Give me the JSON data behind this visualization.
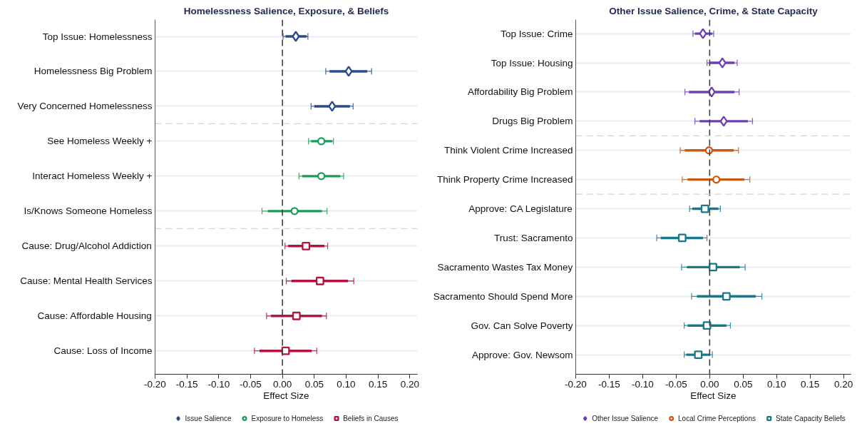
{
  "chart_data": [
    {
      "type": "scatter",
      "orientation": "horizontal",
      "title": "Homelessness Salience, Exposure, & Beliefs",
      "xlabel": "Effect Size",
      "categories": [
        "Top Issue: Homelessness",
        "Homelessness Big Problem",
        "Very Concerned Homelessness",
        "See Homeless Weekly +",
        "Interact Homeless Weekly +",
        "Is/Knows Someone Homeless",
        "Cause: Drug/Alcohol Addiction",
        "Cause: Mental Health Services",
        "Cause: Affordable Housing",
        "Cause: Loss of Income"
      ],
      "series": [
        {
          "name": "Issue Salience",
          "color": "#2a4b88",
          "marker": "diamond",
          "values": [
            0.021,
            0.104,
            0.078,
            null,
            null,
            null,
            null,
            null,
            null,
            null
          ],
          "errors": [
            [
              0.001,
              0.04
            ],
            [
              0.068,
              0.14
            ],
            [
              0.045,
              0.111
            ],
            null,
            null,
            null,
            null,
            null,
            null,
            null
          ]
        },
        {
          "type": "bar",
          "color": "#2a4b88",
          "base": [
            0.005,
            0.074,
            0.05,
            null,
            null,
            null,
            null,
            null,
            null,
            null
          ],
          "values": [
            0.033,
            0.059,
            0.056,
            null,
            null,
            null,
            null,
            null,
            null,
            null
          ]
        },
        {
          "name": "Exposure to Homeless",
          "color": "#1b9c58",
          "marker": "circle",
          "values": [
            null,
            null,
            null,
            0.061,
            0.061,
            0.019,
            null,
            null,
            null,
            null
          ],
          "errors": [
            null,
            null,
            null,
            [
              0.041,
              0.08
            ],
            [
              0.026,
              0.096
            ],
            [
              -0.032,
              0.07
            ],
            null,
            null,
            null,
            null
          ]
        },
        {
          "type": "bar",
          "color": "#1b9c58",
          "base": [
            null,
            null,
            null,
            0.045,
            0.031,
            -0.023,
            null,
            null,
            null,
            null
          ],
          "values": [
            null,
            null,
            null,
            0.033,
            0.06,
            0.085,
            null,
            null,
            null,
            null
          ]
        },
        {
          "name": "Beliefs in Causes",
          "color": "#b1143f",
          "marker": "square",
          "values": [
            null,
            null,
            null,
            null,
            null,
            null,
            0.037,
            0.059,
            0.022,
            0.005
          ],
          "errors": [
            null,
            null,
            null,
            null,
            null,
            null,
            [
              0.004,
              0.071
            ],
            [
              0.006,
              0.112
            ],
            [
              -0.025,
              0.069
            ],
            [
              -0.044,
              0.054
            ]
          ]
        },
        {
          "type": "bar",
          "color": "#b1143f",
          "base": [
            null,
            null,
            null,
            null,
            null,
            null,
            0.009,
            0.014,
            -0.018,
            -0.036
          ],
          "values": [
            null,
            null,
            null,
            null,
            null,
            null,
            0.057,
            0.089,
            0.08,
            0.082
          ]
        }
      ],
      "xlim": [
        -0.2,
        0.212
      ],
      "xticks": [
        {
          "value": -0.2,
          "label": "-0.20"
        },
        {
          "value": -0.15,
          "label": "-0.15"
        },
        {
          "value": -0.1,
          "label": "-0.10"
        },
        {
          "value": -0.05,
          "label": "-0.05"
        },
        {
          "value": 0,
          "label": "0.00"
        },
        {
          "value": 0.05,
          "label": "0.05"
        },
        {
          "value": 0.1,
          "label": "0.10"
        },
        {
          "value": 0.15,
          "label": "0.15"
        },
        {
          "value": 0.2,
          "label": "0.20"
        }
      ],
      "grid": "y",
      "legend": "bottom",
      "ref_lines": [
        {
          "axis": "x",
          "value": 0,
          "color": "#404040",
          "line_style": "dashed"
        }
      ]
    },
    {
      "type": "scatter",
      "orientation": "horizontal",
      "title": "Other Issue Salience, Crime, & State Capacity",
      "xlabel": "Effect Size",
      "categories": [
        "Top Issue: Crime",
        "Top Issue: Housing",
        "Affordability Big Problem",
        "Drugs Big Problem",
        "Think Violent Crime Increased",
        "Think Property Crime Increased",
        "Approve: CA Legislature",
        "Trust: Sacramento",
        "Sacramento Wastes Tax Money",
        "Sacramento Should Spend More",
        "Gov. Can Solve Poverty",
        "Approve: Gov. Newsom"
      ],
      "series": [
        {
          "name": "Other Issue Salience",
          "color": "#6e40b2",
          "marker": "diamond",
          "values": [
            -0.01,
            0.019,
            0.003,
            0.021,
            null,
            null,
            null,
            null,
            null,
            null,
            null,
            null
          ],
          "errors": [
            [
              -0.025,
              0.006
            ],
            [
              -0.004,
              0.041
            ],
            [
              -0.037,
              0.044
            ],
            [
              -0.022,
              0.064
            ],
            null,
            null,
            null,
            null,
            null,
            null,
            null,
            null
          ]
        },
        {
          "type": "bar",
          "color": "#6e40b2",
          "base": [
            -0.022,
            0.0,
            -0.031,
            -0.015,
            null,
            null,
            null,
            null,
            null,
            null,
            null,
            null
          ],
          "values": [
            0.026,
            0.037,
            0.068,
            0.072,
            null,
            null,
            null,
            null,
            null,
            null,
            null,
            null
          ]
        },
        {
          "name": "Local Crime Perceptions",
          "color": "#c85812",
          "marker": "circle",
          "values": [
            null,
            null,
            null,
            null,
            -0.001,
            0.01,
            null,
            null,
            null,
            null,
            null,
            null
          ],
          "errors": [
            null,
            null,
            null,
            null,
            [
              -0.044,
              0.043
            ],
            [
              -0.041,
              0.06
            ],
            null,
            null,
            null,
            null,
            null,
            null
          ]
        },
        {
          "type": "bar",
          "color": "#c85812",
          "base": [
            null,
            null,
            null,
            null,
            -0.037,
            -0.033,
            null,
            null,
            null,
            null,
            null,
            null
          ],
          "values": [
            null,
            null,
            null,
            null,
            0.073,
            0.085,
            null,
            null,
            null,
            null,
            null,
            null
          ]
        },
        {
          "name": "State Capacity Beliefs",
          "color": "#1a7889",
          "marker": "square",
          "values": [
            null,
            null,
            null,
            null,
            null,
            null,
            -0.007,
            -0.041,
            0.005,
            0.025,
            -0.004,
            -0.017
          ],
          "errors": [
            null,
            null,
            null,
            null,
            null,
            null,
            [
              -0.03,
              0.016
            ],
            [
              -0.079,
              -0.004
            ],
            [
              -0.042,
              0.053
            ],
            [
              -0.027,
              0.078
            ],
            [
              -0.038,
              0.031
            ],
            [
              -0.038,
              0.004
            ]
          ]
        },
        {
          "type": "bar",
          "color": "#1a7889",
          "base": [
            null,
            null,
            null,
            null,
            null,
            null,
            -0.026,
            -0.073,
            -0.034,
            -0.019,
            -0.033,
            -0.035
          ],
          "values": [
            null,
            null,
            null,
            null,
            null,
            null,
            0.039,
            0.063,
            0.079,
            0.088,
            0.058,
            0.035
          ]
        }
      ],
      "xlim": [
        -0.2,
        0.211
      ],
      "xticks": [
        {
          "value": -0.2,
          "label": "-0.20"
        },
        {
          "value": -0.15,
          "label": "-0.15"
        },
        {
          "value": -0.1,
          "label": "-0.10"
        },
        {
          "value": -0.05,
          "label": "-0.05"
        },
        {
          "value": 0,
          "label": "0.00"
        },
        {
          "value": 0.05,
          "label": "0.05"
        },
        {
          "value": 0.1,
          "label": "0.10"
        },
        {
          "value": 0.15,
          "label": "0.15"
        },
        {
          "value": 0.2,
          "label": "0.20"
        }
      ],
      "grid": "y",
      "legend": "bottom",
      "ref_lines": [
        {
          "axis": "x",
          "value": 0,
          "color": "#404040",
          "line_style": "dashed"
        }
      ]
    }
  ]
}
